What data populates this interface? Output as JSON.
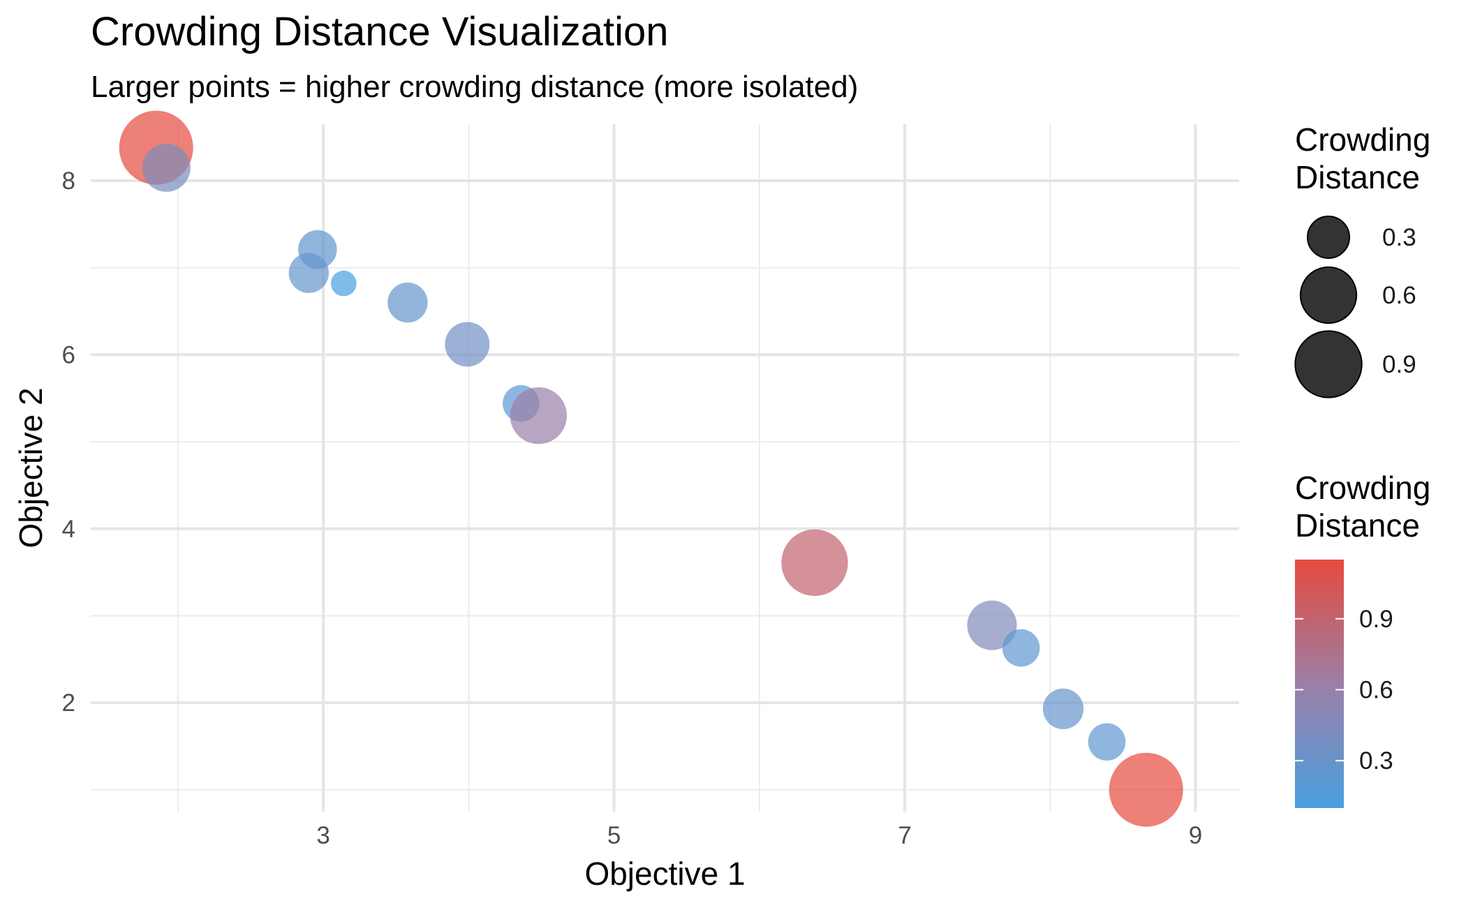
{
  "chart_data": {
    "type": "scatter",
    "title": "Crowding Distance Visualization",
    "subtitle": "Larger points = higher crowding distance (more isolated)",
    "xlabel": "Objective 1",
    "ylabel": "Objective 2",
    "xlim": [
      1.4,
      9.3
    ],
    "ylim": [
      0.75,
      8.65
    ],
    "x_ticks": [
      3,
      5,
      7,
      9
    ],
    "y_ticks": [
      2,
      4,
      6,
      8
    ],
    "grid": true,
    "points": [
      {
        "x": 1.85,
        "y": 8.38,
        "crowding_distance": 1.15
      },
      {
        "x": 1.92,
        "y": 8.15,
        "crowding_distance": 0.42
      },
      {
        "x": 2.96,
        "y": 7.21,
        "crowding_distance": 0.25
      },
      {
        "x": 2.9,
        "y": 6.94,
        "crowding_distance": 0.27
      },
      {
        "x": 3.14,
        "y": 6.82,
        "crowding_distance": 0.1
      },
      {
        "x": 3.58,
        "y": 6.6,
        "crowding_distance": 0.27
      },
      {
        "x": 3.99,
        "y": 6.12,
        "crowding_distance": 0.35
      },
      {
        "x": 4.36,
        "y": 5.44,
        "crowding_distance": 0.22
      },
      {
        "x": 4.48,
        "y": 5.3,
        "crowding_distance": 0.62
      },
      {
        "x": 6.38,
        "y": 3.61,
        "crowding_distance": 0.9
      },
      {
        "x": 7.6,
        "y": 2.89,
        "crowding_distance": 0.45
      },
      {
        "x": 7.8,
        "y": 2.63,
        "crowding_distance": 0.23
      },
      {
        "x": 8.09,
        "y": 1.93,
        "crowding_distance": 0.28
      },
      {
        "x": 8.39,
        "y": 1.55,
        "crowding_distance": 0.23
      },
      {
        "x": 8.66,
        "y": 1.0,
        "crowding_distance": 1.15
      }
    ],
    "size_legend": {
      "title_lines": [
        "Crowding",
        "Distance"
      ],
      "breaks": [
        0.3,
        0.6,
        0.9
      ],
      "labels": [
        "0.3",
        "0.6",
        "0.9"
      ]
    },
    "color_legend": {
      "title_lines": [
        "Crowding",
        "Distance"
      ],
      "low_color": "#4a9fe0",
      "mid_color": "#9b7fa6",
      "high_color": "#e64a3d",
      "breaks": [
        0.3,
        0.6,
        0.9
      ],
      "labels": [
        "0.3",
        "0.6",
        "0.9"
      ],
      "range": [
        0.1,
        1.15
      ]
    },
    "point_opacity": 0.7
  }
}
